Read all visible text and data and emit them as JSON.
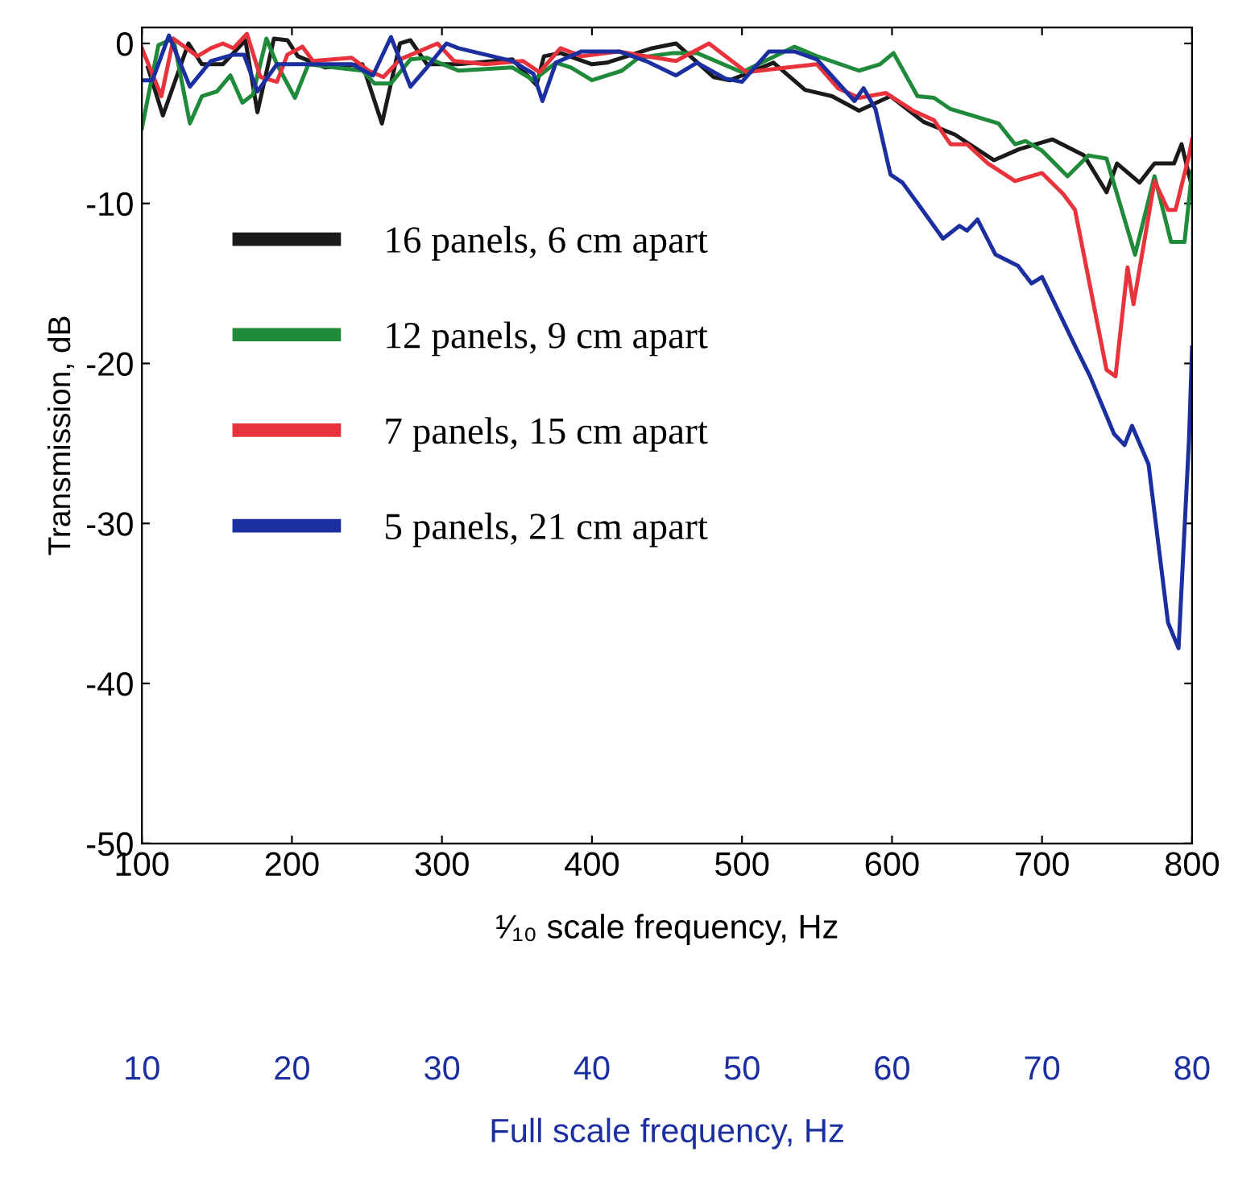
{
  "chart_data": {
    "type": "line",
    "xlabel": "¹⁄₁₀ scale frequency, Hz",
    "ylabel": "Transmission, dB",
    "x2label": "Full scale frequency, Hz",
    "xlim": [
      100,
      800
    ],
    "xticks": [
      100,
      200,
      300,
      400,
      500,
      600,
      700,
      800
    ],
    "ylim": [
      -50,
      1
    ],
    "yticks": [
      -50,
      -40,
      -30,
      -20,
      -10,
      0
    ],
    "x2lim": [
      10,
      80
    ],
    "x2ticks": [
      10,
      20,
      30,
      40,
      50,
      60,
      70,
      80
    ],
    "legend": "left",
    "grid": false,
    "marker": "none",
    "line_style": "solid",
    "series": [
      {
        "name": "16 panels, 6 cm apart",
        "color": "#1a1a1a",
        "x": [
          104,
          114,
          131,
          140,
          154,
          169,
          177,
          188,
          197,
          204,
          222,
          247,
          260,
          272,
          279,
          290,
          311,
          347,
          363,
          368,
          379,
          400,
          410,
          440,
          456,
          481,
          492,
          500,
          521,
          542,
          560,
          578,
          599,
          621,
          642,
          668,
          685,
          707,
          728,
          743,
          750,
          765,
          775,
          788,
          793,
          800
        ],
        "values": [
          -1.5,
          -4.5,
          0,
          -1.3,
          -1.3,
          0.2,
          -4.3,
          0.3,
          0.2,
          -0.8,
          -1.5,
          -1.3,
          -5,
          0,
          0.2,
          -1.3,
          -1.3,
          -1,
          -2.6,
          -0.8,
          -0.6,
          -1.3,
          -1.2,
          -0.3,
          0,
          -2.1,
          -2.3,
          -2,
          -1.2,
          -2.9,
          -3.3,
          -4.2,
          -3.3,
          -4.9,
          -5.7,
          -7.3,
          -6.6,
          -6,
          -7,
          -9.3,
          -7.5,
          -8.7,
          -7.5,
          -7.5,
          -6.3,
          -9
        ]
      },
      {
        "name": "12 panels, 9 cm apart",
        "color": "#1f8a3a",
        "x": [
          100,
          111,
          121,
          132,
          140,
          150,
          159,
          167,
          174,
          183,
          190,
          202,
          211,
          228,
          247,
          255,
          266,
          279,
          290,
          311,
          347,
          361,
          376,
          386,
          400,
          420,
          431,
          454,
          470,
          500,
          535,
          550,
          578,
          592,
          601,
          617,
          628,
          639,
          671,
          682,
          689,
          700,
          717,
          731,
          743,
          762,
          775,
          786,
          795,
          800
        ],
        "values": [
          -5.3,
          -0.1,
          0.3,
          -5,
          -3.3,
          -3,
          -2,
          -3.7,
          -3.2,
          0.3,
          -1.3,
          -3.4,
          -1.3,
          -1.5,
          -1.7,
          -2.5,
          -2.5,
          -1,
          -0.9,
          -1.7,
          -1.5,
          -2.3,
          -1.2,
          -1.5,
          -2.3,
          -1.7,
          -0.9,
          -0.6,
          -0.6,
          -1.8,
          -0.2,
          -0.8,
          -1.7,
          -1.3,
          -0.6,
          -3.3,
          -3.4,
          -4.1,
          -5,
          -6.3,
          -6.1,
          -6.7,
          -8.3,
          -7,
          -7.2,
          -13.2,
          -8.3,
          -12.4,
          -12.4,
          -8
        ]
      },
      {
        "name": "7 panels, 15 cm apart",
        "color": "#e8323c",
        "x": [
          100,
          113,
          121,
          137,
          146,
          154,
          161,
          170,
          179,
          190,
          197,
          207,
          214,
          240,
          251,
          261,
          272,
          297,
          308,
          329,
          354,
          365,
          379,
          393,
          418,
          436,
          456,
          478,
          503,
          521,
          550,
          564,
          578,
          596,
          614,
          628,
          639,
          650,
          664,
          682,
          700,
          714,
          722,
          743,
          749,
          757,
          761,
          775,
          784,
          789,
          798,
          800
        ],
        "values": [
          -0.3,
          -3.3,
          0.3,
          -0.8,
          -0.3,
          0,
          -0.3,
          0.6,
          -2.1,
          -2.4,
          -0.7,
          -0.2,
          -1.1,
          -0.9,
          -1.7,
          -2.1,
          -1,
          0,
          -1.1,
          -1.3,
          -1.1,
          -1.8,
          -0.3,
          -0.8,
          -0.5,
          -0.8,
          -1.1,
          0,
          -1.8,
          -1.6,
          -1.3,
          -2.8,
          -3.4,
          -3.1,
          -4.2,
          -4.8,
          -6.3,
          -6.3,
          -7.5,
          -8.6,
          -8.1,
          -9.4,
          -10.4,
          -20.4,
          -20.8,
          -14,
          -16.3,
          -8.6,
          -10.4,
          -10.4,
          -7,
          -6
        ]
      },
      {
        "name": "5 panels, 21 cm apart",
        "color": "#1c2fa0",
        "x": [
          100,
          107,
          118,
          132,
          146,
          161,
          168,
          177,
          190,
          214,
          240,
          254,
          266,
          279,
          290,
          303,
          311,
          347,
          361,
          367,
          376,
          393,
          418,
          436,
          456,
          470,
          489,
          500,
          518,
          535,
          550,
          575,
          581,
          589,
          599,
          607,
          621,
          634,
          645,
          650,
          657,
          669,
          684,
          693,
          700,
          722,
          732,
          748,
          755,
          760,
          771,
          784,
          791,
          798,
          800
        ],
        "values": [
          -2.3,
          -2.3,
          0.5,
          -2.7,
          -1.1,
          -0.7,
          -0.7,
          -3,
          -1.3,
          -1.3,
          -1.3,
          -2,
          0.4,
          -2.7,
          -1.5,
          0,
          -0.3,
          -1.1,
          -1.9,
          -3.6,
          -1.2,
          -0.5,
          -0.5,
          -1.1,
          -2,
          -1.2,
          -2.2,
          -2.4,
          -0.5,
          -0.5,
          -1,
          -3.6,
          -2.8,
          -4.1,
          -8.2,
          -8.7,
          -10.5,
          -12.2,
          -11.4,
          -11.7,
          -11,
          -13.2,
          -13.9,
          -15,
          -14.6,
          -18.9,
          -20.8,
          -24.4,
          -25.1,
          -23.9,
          -26.3,
          -36.2,
          -37.8,
          -24.7,
          -19
        ]
      }
    ]
  }
}
